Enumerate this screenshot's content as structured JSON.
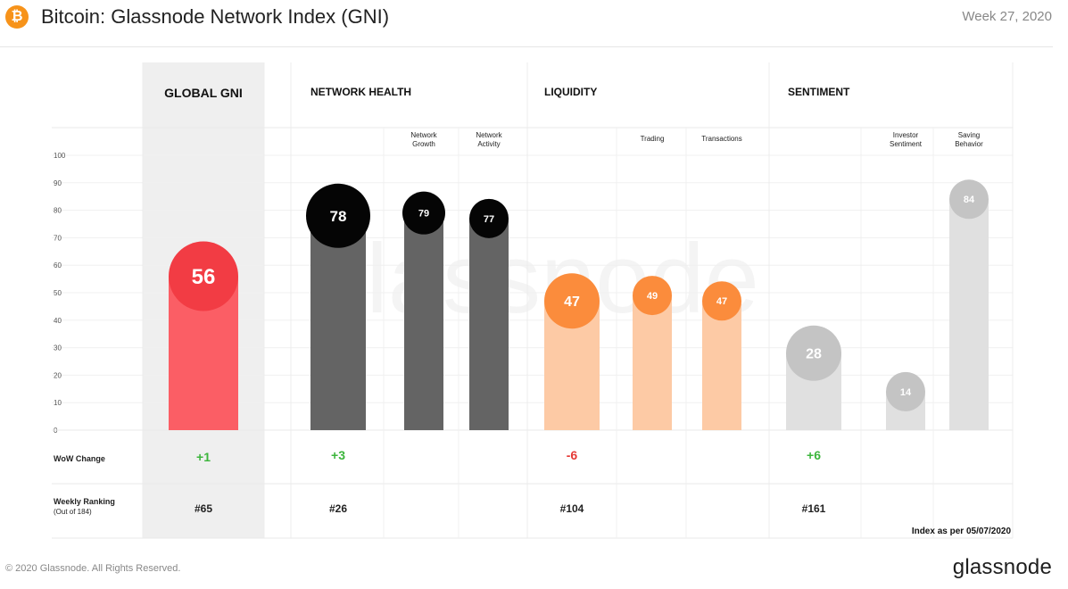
{
  "header": {
    "logo_glyph": "₿",
    "title": "Bitcoin: Glassnode Network Index (GNI)",
    "week": "Week 27, 2020"
  },
  "footer": {
    "copyright": "© 2020 Glassnode. All Rights Reserved.",
    "brand": "glassnode",
    "watermark": "glassnode"
  },
  "chart_data": {
    "type": "bar",
    "ylim": [
      0,
      100
    ],
    "y_ticks": [
      0,
      10,
      20,
      30,
      40,
      50,
      60,
      70,
      80,
      90,
      100
    ],
    "grid": true,
    "index_note": "Index as per 05/07/2020",
    "row_labels": {
      "wow": "WoW  Change",
      "ranking": "Weekly Ranking",
      "ranking_sub": "(Out of 184)"
    },
    "groups": [
      {
        "name": "GLOBAL GNI",
        "wow": "+1",
        "ranking": "#65",
        "bars": [
          {
            "name": "",
            "value": 56,
            "color": "#fb5e65",
            "circle": "#f23c44"
          }
        ]
      },
      {
        "name": "NETWORK HEALTH",
        "wow": "+3",
        "ranking": "#26",
        "bars": [
          {
            "name": "",
            "value": 78,
            "color": "#646464",
            "circle": "#050505"
          },
          {
            "name": "Network Growth",
            "value": 79,
            "color": "#646464",
            "circle": "#050505"
          },
          {
            "name": "Network Activity",
            "value": 77,
            "color": "#646464",
            "circle": "#050505"
          }
        ]
      },
      {
        "name": "LIQUIDITY",
        "wow": "-6",
        "ranking": "#104",
        "bars": [
          {
            "name": "",
            "value": 47,
            "color": "#fdcaa5",
            "circle": "#fb8c3c"
          },
          {
            "name": "Trading",
            "value": 49,
            "color": "#fdcaa5",
            "circle": "#fb8c3c"
          },
          {
            "name": "Transactions",
            "value": 47,
            "color": "#fdcaa5",
            "circle": "#fb8c3c"
          }
        ]
      },
      {
        "name": "SENTIMENT",
        "wow": "+6",
        "ranking": "#161",
        "bars": [
          {
            "name": "",
            "value": 28,
            "color": "#e0e0e0",
            "circle": "#c4c4c4"
          },
          {
            "name": "Investor Sentiment",
            "value": 14,
            "color": "#e0e0e0",
            "circle": "#c4c4c4"
          },
          {
            "name": "Saving Behavior",
            "value": 84,
            "color": "#e0e0e0",
            "circle": "#c4c4c4"
          }
        ]
      }
    ],
    "colors": {
      "positive": "#3cb53c",
      "negative": "#e53935",
      "highlight_bg": "#efefef"
    }
  }
}
